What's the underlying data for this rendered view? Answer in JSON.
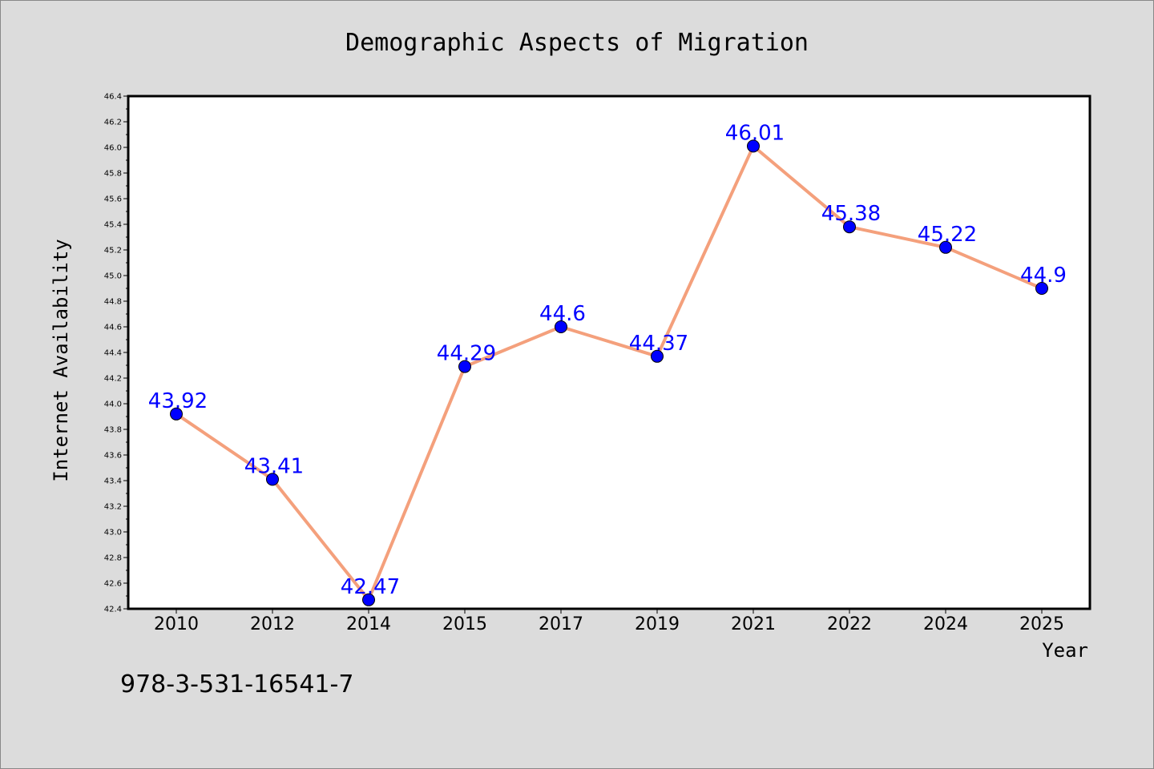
{
  "chart_data": {
    "type": "line",
    "title": "Demographic Aspects of Migration",
    "xlabel": "Year",
    "ylabel": "Internet Availability",
    "categories": [
      "2010",
      "2012",
      "2014",
      "2015",
      "2017",
      "2019",
      "2021",
      "2022",
      "2024",
      "2025"
    ],
    "series": [
      {
        "values": [
          43.92,
          43.41,
          42.47,
          44.29,
          44.6,
          44.37,
          46.01,
          45.38,
          45.22,
          44.9
        ],
        "data_labels": [
          "43.92",
          "43.41",
          "42.47",
          "44.29",
          "44.6",
          "44.37",
          "46.01",
          "45.38",
          "45.22",
          "44.9"
        ],
        "line_color": "#f4a07c",
        "marker_color": "#0000ff"
      }
    ],
    "ylim": [
      42.4,
      46.4
    ],
    "yticks": [
      "42.4",
      "42.6",
      "42.8",
      "43.0",
      "43.2",
      "43.4",
      "43.6",
      "43.8",
      "44.0",
      "44.2",
      "44.4",
      "44.6",
      "44.8",
      "45.0",
      "45.2",
      "45.4",
      "45.6",
      "45.8",
      "46.0",
      "46.2",
      "46.4"
    ],
    "grid": false,
    "legend": "none"
  },
  "annotation": {
    "isbn": "978-3-531-16541-7"
  },
  "colors": {
    "background": "#dcdcdc",
    "plot_background": "#ffffff",
    "line": "#f4a07c",
    "marker": "#0000ff",
    "data_label": "#0000ff"
  }
}
